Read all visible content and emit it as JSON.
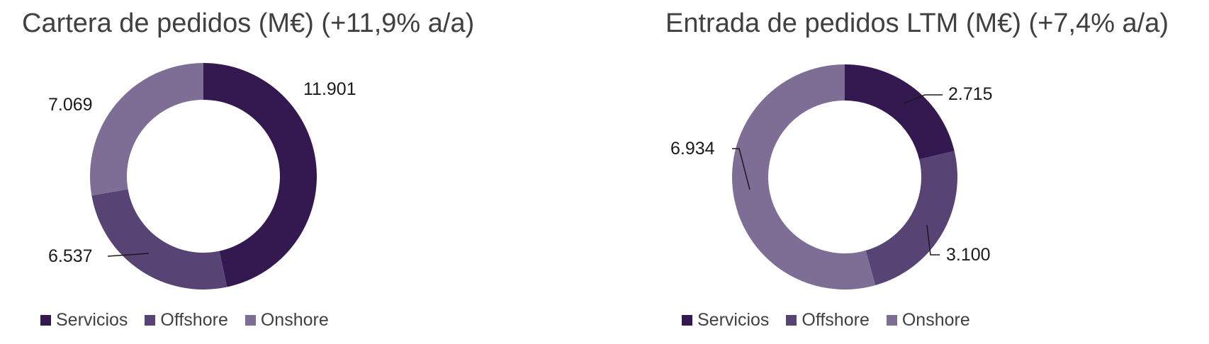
{
  "colors": {
    "servicios": "#33194f",
    "offshore": "#574475",
    "onshore": "#7e6e96"
  },
  "charts": [
    {
      "title": "Cartera de pedidos (M€) (+11,9% a/a)",
      "labels": {
        "servicios": "11.901",
        "offshore": "6.537",
        "onshore": "7.069"
      },
      "legend": [
        "Servicios",
        "Offshore",
        "Onshore"
      ]
    },
    {
      "title": "Entrada de pedidos LTM (M€) (+7,4% a/a)",
      "labels": {
        "servicios": "2.715",
        "offshore": "3.100",
        "onshore": "6.934"
      },
      "legend": [
        "Servicios",
        "Offshore",
        "Onshore"
      ]
    }
  ],
  "chart_data": [
    {
      "type": "pie",
      "subtype": "donut",
      "title": "Cartera de pedidos (M€) (+11,9% a/a)",
      "categories": [
        "Servicios",
        "Offshore",
        "Onshore"
      ],
      "values": [
        11901,
        6537,
        7069
      ],
      "value_labels": [
        "11.901",
        "6.537",
        "7.069"
      ],
      "colors": [
        "#33194f",
        "#574475",
        "#7e6e96"
      ],
      "legend_position": "bottom",
      "start_angle_deg": 0,
      "direction": "clockwise"
    },
    {
      "type": "pie",
      "subtype": "donut",
      "title": "Entrada de pedidos LTM (M€) (+7,4% a/a)",
      "categories": [
        "Servicios",
        "Offshore",
        "Onshore"
      ],
      "values": [
        2715,
        3100,
        6934
      ],
      "value_labels": [
        "2.715",
        "3.100",
        "6.934"
      ],
      "colors": [
        "#33194f",
        "#574475",
        "#7e6e96"
      ],
      "legend_position": "bottom",
      "start_angle_deg": 0,
      "direction": "clockwise"
    }
  ]
}
